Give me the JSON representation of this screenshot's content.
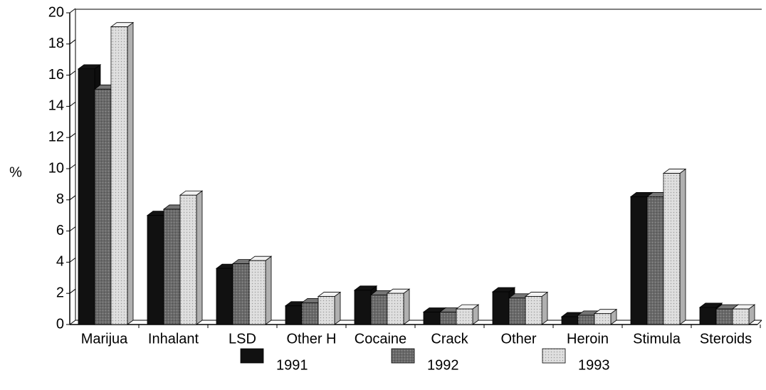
{
  "chart_data": {
    "type": "bar",
    "ylabel": "%",
    "categories": [
      "Marijua",
      "Inhalant",
      "LSD",
      "Other H",
      "Cocaine",
      "Crack",
      "Other",
      "Heroin",
      "Stimula",
      "Steroids"
    ],
    "series": [
      {
        "name": "1991",
        "color": "#111111",
        "values": [
          16.4,
          7.0,
          3.6,
          1.2,
          2.2,
          0.8,
          2.1,
          0.5,
          8.2,
          1.1
        ]
      },
      {
        "name": "1992",
        "color": "#6a6a6a",
        "values": [
          15.1,
          7.4,
          3.9,
          1.4,
          1.9,
          0.8,
          1.7,
          0.6,
          8.2,
          1.0
        ]
      },
      {
        "name": "1993",
        "color": "#dcdcdc",
        "values": [
          19.1,
          8.3,
          4.1,
          1.8,
          2.0,
          1.0,
          1.8,
          0.7,
          9.7,
          1.0
        ]
      }
    ],
    "ylim": [
      0,
      20
    ],
    "yticks": [
      0,
      2,
      4,
      6,
      8,
      10,
      12,
      14,
      16,
      18,
      20
    ],
    "legend": "bottom"
  }
}
